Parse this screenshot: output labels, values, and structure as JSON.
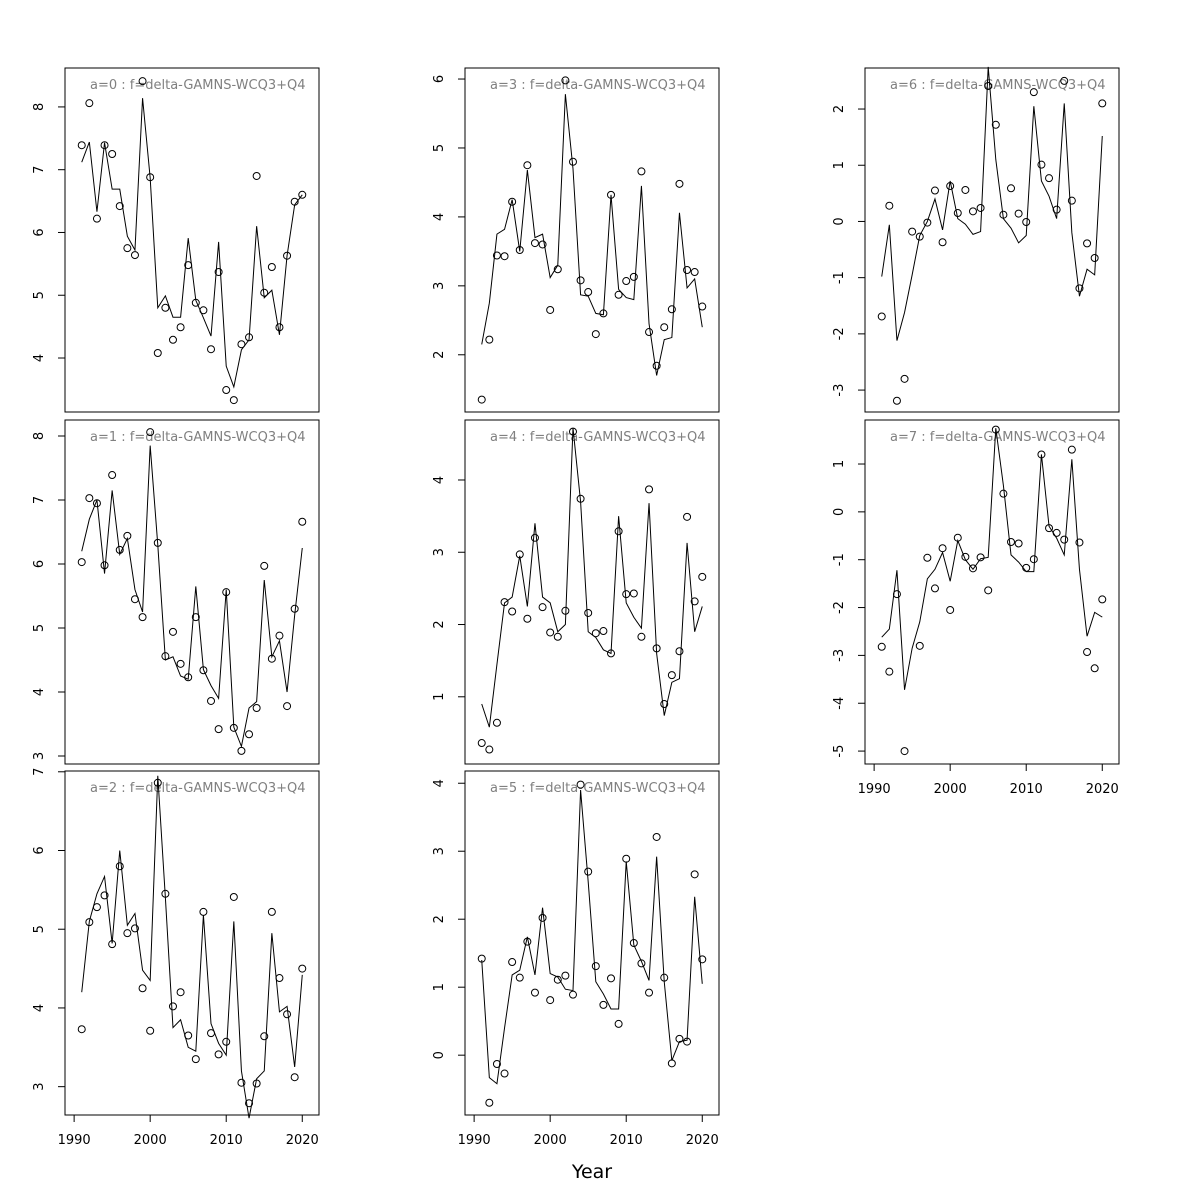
{
  "chart_data": [
    {
      "type": "line",
      "title": "a=0  :  f=delta-GAMNS-WCQ3+Q4",
      "x": [
        1991,
        1992,
        1993,
        1994,
        1995,
        1996,
        1997,
        1998,
        1999,
        2000,
        2001,
        2002,
        2003,
        2004,
        2005,
        2006,
        2007,
        2008,
        2009,
        2010,
        2011,
        2012,
        2013,
        2014,
        2015,
        2016,
        2017,
        2018,
        2019,
        2020
      ],
      "xlim": [
        1988.8,
        2022.2
      ],
      "ylim": [
        3.14,
        8.62
      ],
      "yticks": [
        4,
        5,
        6,
        7,
        8
      ],
      "series": [
        {
          "mode": "points",
          "color": "#000000",
          "values": [
            7.39,
            8.06,
            6.22,
            7.39,
            7.25,
            6.42,
            5.75,
            5.64,
            8.41,
            6.88,
            4.08,
            4.8,
            4.29,
            4.49,
            5.48,
            4.88,
            4.76,
            4.14,
            5.37,
            3.49,
            3.33,
            4.22,
            4.33,
            6.9,
            5.04,
            5.45,
            4.49,
            5.63,
            6.49,
            6.6
          ]
        },
        {
          "mode": "lines",
          "color": "#000000",
          "values": [
            7.12,
            7.44,
            6.33,
            7.43,
            6.69,
            6.69,
            5.94,
            5.72,
            8.14,
            6.87,
            4.8,
            4.99,
            4.65,
            4.65,
            5.91,
            4.92,
            4.64,
            4.35,
            5.85,
            3.87,
            3.54,
            4.13,
            4.29,
            6.1,
            4.96,
            5.08,
            4.37,
            5.63,
            6.44,
            6.6
          ]
        }
      ]
    },
    {
      "type": "line",
      "title": "a=1  :  f=delta-GAMNS-WCQ3+Q4",
      "x": [
        1991,
        1992,
        1993,
        1994,
        1995,
        1996,
        1997,
        1998,
        1999,
        2000,
        2001,
        2002,
        2003,
        2004,
        2005,
        2006,
        2007,
        2008,
        2009,
        2010,
        2011,
        2012,
        2013,
        2014,
        2015,
        2016,
        2017,
        2018,
        2019,
        2020
      ],
      "xlim": [
        1988.8,
        2022.2
      ],
      "ylim": [
        2.875,
        8.25
      ],
      "yticks": [
        3,
        4,
        5,
        6,
        7,
        8
      ],
      "series": [
        {
          "mode": "points",
          "color": "#000000",
          "values": [
            6.03,
            7.03,
            6.95,
            5.98,
            7.39,
            6.22,
            6.44,
            5.45,
            5.17,
            8.06,
            6.33,
            4.56,
            4.94,
            4.44,
            4.23,
            5.17,
            4.34,
            3.86,
            3.42,
            5.56,
            3.44,
            3.08,
            3.34,
            3.75,
            5.97,
            4.52,
            4.88,
            3.78,
            5.3,
            6.66
          ]
        },
        {
          "mode": "lines",
          "color": "#000000",
          "values": [
            6.2,
            6.7,
            7.0,
            5.85,
            7.15,
            6.15,
            6.4,
            5.6,
            5.25,
            7.85,
            6.3,
            4.5,
            4.55,
            4.25,
            4.2,
            5.65,
            4.35,
            4.1,
            3.9,
            5.6,
            3.45,
            3.15,
            3.75,
            3.85,
            5.75,
            4.55,
            4.8,
            4.0,
            5.2,
            6.25
          ]
        }
      ]
    },
    {
      "type": "line",
      "title": "a=2  :  f=delta-GAMNS-WCQ3+Q4",
      "x": [
        1991,
        1992,
        1993,
        1994,
        1995,
        1996,
        1997,
        1998,
        1999,
        2000,
        2001,
        2002,
        2003,
        2004,
        2005,
        2006,
        2007,
        2008,
        2009,
        2010,
        2011,
        2012,
        2013,
        2014,
        2015,
        2016,
        2017,
        2018,
        2019,
        2020
      ],
      "xlim": [
        1988.8,
        2022.2
      ],
      "xticks": [
        1990,
        2000,
        2010,
        2020
      ],
      "ylim": [
        2.64,
        7.01
      ],
      "yticks": [
        3,
        4,
        5,
        6,
        7
      ],
      "series": [
        {
          "mode": "points",
          "color": "#000000",
          "values": [
            3.73,
            5.09,
            5.28,
            5.43,
            4.81,
            5.8,
            4.95,
            5.01,
            4.25,
            3.71,
            6.86,
            5.45,
            4.02,
            4.2,
            3.65,
            3.35,
            5.22,
            3.68,
            3.41,
            3.57,
            5.41,
            3.05,
            2.79,
            3.04,
            3.64,
            5.22,
            4.38,
            3.92,
            3.12,
            4.5
          ]
        },
        {
          "mode": "lines",
          "color": "#000000",
          "values": [
            4.2,
            5.1,
            5.45,
            5.67,
            4.82,
            6.0,
            5.05,
            5.2,
            4.48,
            4.35,
            6.95,
            5.4,
            3.75,
            3.85,
            3.5,
            3.45,
            5.18,
            3.8,
            3.55,
            3.4,
            5.1,
            3.2,
            2.6,
            3.1,
            3.2,
            4.95,
            3.95,
            4.02,
            3.25,
            4.42
          ]
        }
      ]
    },
    {
      "type": "line",
      "title": "a=3  :  f=delta-GAMNS-WCQ3+Q4",
      "x": [
        1991,
        1992,
        1993,
        1994,
        1995,
        1996,
        1997,
        1998,
        1999,
        2000,
        2001,
        2002,
        2003,
        2004,
        2005,
        2006,
        2007,
        2008,
        2009,
        2010,
        2011,
        2012,
        2013,
        2014,
        2015,
        2016,
        2017,
        2018,
        2019,
        2020
      ],
      "xlim": [
        1988.8,
        2022.2
      ],
      "ylim": [
        1.17,
        6.16
      ],
      "yticks": [
        2,
        3,
        4,
        5,
        6
      ],
      "series": [
        {
          "mode": "points",
          "color": "#000000",
          "values": [
            1.35,
            2.22,
            3.44,
            3.43,
            4.22,
            3.52,
            4.75,
            3.62,
            3.6,
            2.65,
            3.24,
            5.98,
            4.8,
            3.08,
            2.91,
            2.3,
            2.6,
            4.32,
            2.87,
            3.07,
            3.13,
            4.66,
            2.33,
            1.84,
            2.4,
            2.66,
            4.48,
            3.23,
            3.2,
            2.7
          ]
        },
        {
          "mode": "lines",
          "color": "#000000",
          "values": [
            2.15,
            2.75,
            3.75,
            3.82,
            4.25,
            3.5,
            4.68,
            3.7,
            3.75,
            3.12,
            3.3,
            5.78,
            4.7,
            2.87,
            2.85,
            2.6,
            2.58,
            4.32,
            2.95,
            2.83,
            2.8,
            4.45,
            2.45,
            1.7,
            2.22,
            2.25,
            4.06,
            2.97,
            3.1,
            2.4
          ]
        }
      ]
    },
    {
      "type": "line",
      "title": "a=4  :  f=delta-GAMNS-WCQ3+Q4",
      "x": [
        1991,
        1992,
        1993,
        1994,
        1995,
        1996,
        1997,
        1998,
        1999,
        2000,
        2001,
        2002,
        2003,
        2004,
        2005,
        2006,
        2007,
        2008,
        2009,
        2010,
        2011,
        2012,
        2013,
        2014,
        2015,
        2016,
        2017,
        2018,
        2019,
        2020
      ],
      "xlim": [
        1988.8,
        2022.2
      ],
      "ylim": [
        0.07,
        4.83
      ],
      "yticks": [
        1,
        2,
        3,
        4
      ],
      "series": [
        {
          "mode": "points",
          "color": "#000000",
          "values": [
            0.36,
            0.27,
            0.64,
            2.31,
            2.18,
            2.97,
            2.08,
            3.2,
            2.24,
            1.89,
            1.83,
            2.19,
            4.67,
            3.74,
            2.16,
            1.88,
            1.91,
            1.6,
            3.29,
            2.42,
            2.43,
            1.83,
            3.87,
            1.67,
            0.9,
            1.3,
            1.63,
            3.49,
            2.32,
            2.66
          ]
        },
        {
          "mode": "lines",
          "color": "#000000",
          "values": [
            0.9,
            0.58,
            1.45,
            2.3,
            2.38,
            2.95,
            2.25,
            3.4,
            2.38,
            2.3,
            1.9,
            2.0,
            4.72,
            3.7,
            1.9,
            1.82,
            1.65,
            1.6,
            3.5,
            2.3,
            2.1,
            1.95,
            3.68,
            1.6,
            0.74,
            1.2,
            1.25,
            3.13,
            1.9,
            2.25
          ]
        }
      ]
    },
    {
      "type": "line",
      "title": "a=5  :  f=delta-GAMNS-WCQ3+Q4",
      "xlabel": "Year",
      "x": [
        1991,
        1992,
        1993,
        1994,
        1995,
        1996,
        1997,
        1998,
        1999,
        2000,
        2001,
        2002,
        2003,
        2004,
        2005,
        2006,
        2007,
        2008,
        2009,
        2010,
        2011,
        2012,
        2013,
        2014,
        2015,
        2016,
        2017,
        2018,
        2019,
        2020
      ],
      "xlim": [
        1988.8,
        2022.2
      ],
      "xticks": [
        1990,
        2000,
        2010,
        2020
      ],
      "ylim": [
        -0.88,
        4.18
      ],
      "yticks": [
        0,
        1,
        2,
        3,
        4
      ],
      "series": [
        {
          "mode": "points",
          "color": "#000000",
          "values": [
            1.42,
            -0.7,
            -0.13,
            -0.27,
            1.37,
            1.14,
            1.67,
            0.92,
            2.02,
            0.81,
            1.11,
            1.17,
            0.89,
            3.98,
            2.7,
            1.31,
            0.74,
            1.13,
            0.46,
            2.89,
            1.65,
            1.35,
            0.92,
            3.21,
            1.14,
            -0.12,
            0.24,
            0.2,
            2.66,
            1.41
          ]
        },
        {
          "mode": "lines",
          "color": "#000000",
          "values": [
            1.4,
            -0.33,
            -0.42,
            0.4,
            1.18,
            1.25,
            1.74,
            1.18,
            2.17,
            1.2,
            1.15,
            0.97,
            0.95,
            3.9,
            2.55,
            1.08,
            0.9,
            0.68,
            0.68,
            2.85,
            1.62,
            1.38,
            1.1,
            2.92,
            1.08,
            -0.08,
            0.2,
            0.22,
            2.33,
            1.05
          ]
        }
      ]
    },
    {
      "type": "line",
      "title": "a=6  :  f=delta-GAMNS-WCQ3+Q4",
      "x": [
        1991,
        1992,
        1993,
        1994,
        1995,
        1996,
        1997,
        1998,
        1999,
        2000,
        2001,
        2002,
        2003,
        2004,
        2005,
        2006,
        2007,
        2008,
        2009,
        2010,
        2011,
        2012,
        2013,
        2014,
        2015,
        2016,
        2017,
        2018,
        2019,
        2020
      ],
      "xlim": [
        1988.8,
        2022.2
      ],
      "ylim": [
        -3.39,
        2.73
      ],
      "yticks": [
        -3,
        -2,
        -1,
        0,
        1,
        2
      ],
      "series": [
        {
          "mode": "points",
          "color": "#000000",
          "values": [
            -1.69,
            0.28,
            -3.19,
            -2.8,
            -0.18,
            -0.27,
            -0.02,
            0.55,
            -0.37,
            0.63,
            0.15,
            0.56,
            0.18,
            0.24,
            2.41,
            1.72,
            0.12,
            0.59,
            0.14,
            -0.01,
            2.3,
            1.01,
            0.77,
            0.21,
            2.5,
            0.37,
            -1.19,
            -0.39,
            -0.65,
            2.1
          ]
        },
        {
          "mode": "lines",
          "color": "#000000",
          "values": [
            -0.98,
            -0.06,
            -2.12,
            -1.62,
            -0.95,
            -0.25,
            0.0,
            0.4,
            -0.15,
            0.72,
            0.05,
            -0.05,
            -0.23,
            -0.18,
            2.75,
            1.1,
            0.05,
            -0.12,
            -0.38,
            -0.25,
            2.05,
            0.72,
            0.45,
            0.05,
            2.1,
            -0.2,
            -1.33,
            -0.85,
            -0.95,
            1.52
          ]
        }
      ]
    },
    {
      "type": "line",
      "title": "a=7  :  f=delta-GAMNS-WCQ3+Q4",
      "x": [
        1991,
        1992,
        1993,
        1994,
        1995,
        1996,
        1997,
        1998,
        1999,
        2000,
        2001,
        2002,
        2003,
        2004,
        2005,
        2006,
        2007,
        2008,
        2009,
        2010,
        2011,
        2012,
        2013,
        2014,
        2015,
        2016,
        2017,
        2018,
        2019,
        2020
      ],
      "xlim": [
        1988.8,
        2022.2
      ],
      "xticks": [
        1990,
        2000,
        2010,
        2020
      ],
      "ylim": [
        -5.27,
        1.92
      ],
      "yticks": [
        -5,
        -4,
        -3,
        -2,
        -1,
        0,
        1
      ],
      "series": [
        {
          "mode": "points",
          "color": "#000000",
          "values": [
            -2.82,
            -3.34,
            -1.72,
            -5.0,
            null,
            -2.8,
            -0.96,
            -1.6,
            -0.76,
            -2.05,
            -0.54,
            -0.94,
            -1.18,
            -0.95,
            -1.64,
            1.72,
            0.38,
            -0.63,
            -0.66,
            -1.17,
            -0.99,
            1.2,
            -0.34,
            -0.44,
            -0.58,
            1.3,
            -0.64,
            -2.93,
            -3.27,
            -1.83
          ]
        },
        {
          "mode": "lines",
          "color": "#000000",
          "values": [
            -2.62,
            -2.45,
            -1.22,
            -3.72,
            -2.85,
            -2.3,
            -1.4,
            -1.2,
            -0.85,
            -1.45,
            -0.6,
            -1.0,
            -1.2,
            -0.98,
            -0.95,
            1.75,
            0.55,
            -0.9,
            -1.05,
            -1.25,
            -1.25,
            1.2,
            -0.3,
            -0.55,
            -0.9,
            1.1,
            -1.2,
            -2.6,
            -2.1,
            -2.2
          ]
        }
      ]
    }
  ]
}
